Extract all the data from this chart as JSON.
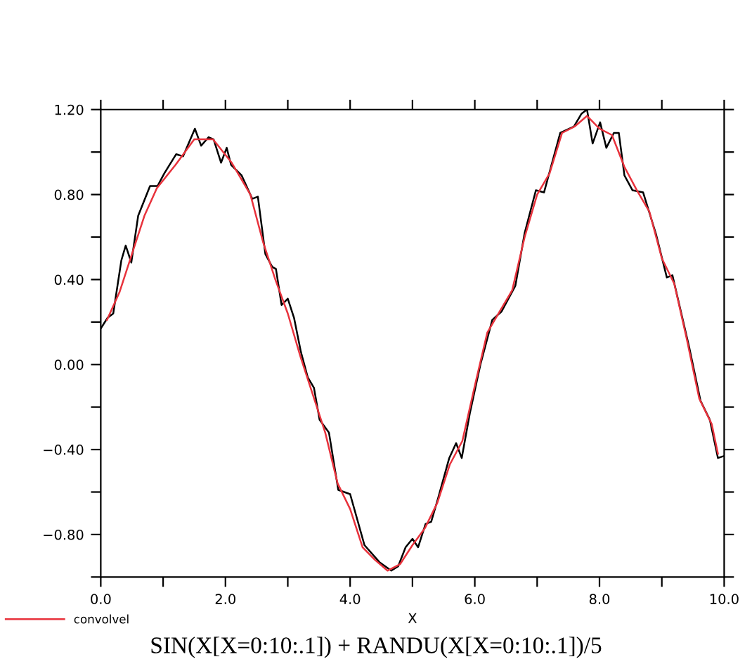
{
  "chart_data": {
    "type": "line",
    "title": "SIN(X[X=0:10:.1]) + RANDU(X[X=0:10:.1])/5",
    "xlabel": "X",
    "xlim": [
      0,
      10
    ],
    "ylim": [
      -1.0,
      1.2
    ],
    "xticks": [
      {
        "value": 0,
        "label": "0.0"
      },
      {
        "value": 1,
        "label": null
      },
      {
        "value": 2,
        "label": "2.0"
      },
      {
        "value": 3,
        "label": null
      },
      {
        "value": 4,
        "label": "4.0"
      },
      {
        "value": 5,
        "label": null
      },
      {
        "value": 6,
        "label": "6.0"
      },
      {
        "value": 7,
        "label": null
      },
      {
        "value": 8,
        "label": "8.0"
      },
      {
        "value": 9,
        "label": null
      },
      {
        "value": 10,
        "label": "10.0"
      }
    ],
    "yticks": [
      {
        "value": -1.0,
        "label": null
      },
      {
        "value": -0.8,
        "label": "−0.80"
      },
      {
        "value": -0.6,
        "label": null
      },
      {
        "value": -0.4,
        "label": "−0.40"
      },
      {
        "value": -0.2,
        "label": null
      },
      {
        "value": 0,
        "label": "0.00"
      },
      {
        "value": 0.2,
        "label": null
      },
      {
        "value": 0.4,
        "label": "0.40"
      },
      {
        "value": 0.6,
        "label": null
      },
      {
        "value": 0.8,
        "label": "0.80"
      },
      {
        "value": 1.0,
        "label": null
      },
      {
        "value": 1.2,
        "label": "1.20"
      }
    ],
    "grid": false,
    "legend": "bottom left",
    "marker": "none",
    "line_style": "solid",
    "series": [
      {
        "color": "#000000",
        "x": [
          0,
          0.11,
          0.2,
          0.33,
          0.4,
          0.49,
          0.6,
          0.79,
          0.91,
          1.02,
          1.21,
          1.32,
          1.51,
          1.61,
          1.73,
          1.81,
          1.93,
          2.02,
          2.09,
          2.26,
          2.43,
          2.52,
          2.64,
          2.75,
          2.81,
          2.9,
          3.0,
          3.1,
          3.21,
          3.32,
          3.42,
          3.51,
          3.66,
          3.81,
          4.0,
          4.23,
          4.41,
          4.47,
          4.66,
          4.77,
          4.89,
          5.0,
          5.09,
          5.21,
          5.3,
          5.41,
          5.59,
          5.7,
          5.79,
          5.92,
          6.09,
          6.28,
          6.43,
          6.65,
          6.8,
          6.98,
          7.11,
          7.37,
          7.59,
          7.71,
          7.8,
          7.89,
          8.01,
          8.11,
          8.23,
          8.31,
          8.4,
          8.53,
          8.7,
          8.91,
          9.08,
          9.17,
          9.44,
          9.62,
          9.77,
          9.9,
          10.0
        ],
        "values": [
          0.17,
          0.22,
          0.24,
          0.49,
          0.56,
          0.48,
          0.7,
          0.84,
          0.84,
          0.9,
          0.99,
          0.98,
          1.11,
          1.03,
          1.07,
          1.06,
          0.95,
          1.02,
          0.94,
          0.89,
          0.78,
          0.79,
          0.52,
          0.46,
          0.45,
          0.28,
          0.31,
          0.22,
          0.06,
          -0.06,
          -0.11,
          -0.26,
          -0.32,
          -0.59,
          -0.61,
          -0.85,
          -0.91,
          -0.93,
          -0.97,
          -0.95,
          -0.86,
          -0.82,
          -0.86,
          -0.75,
          -0.74,
          -0.63,
          -0.44,
          -0.37,
          -0.44,
          -0.23,
          0.0,
          0.21,
          0.25,
          0.37,
          0.62,
          0.82,
          0.81,
          1.09,
          1.12,
          1.18,
          1.2,
          1.04,
          1.14,
          1.02,
          1.09,
          1.09,
          0.89,
          0.82,
          0.81,
          0.61,
          0.41,
          0.42,
          0.08,
          -0.17,
          -0.26,
          -0.44,
          -0.43
        ]
      },
      {
        "name": "convolvel",
        "color": "#e8323c",
        "x": [
          0.1,
          0.3,
          0.5,
          0.7,
          0.9,
          1.2,
          1.5,
          1.8,
          2.1,
          2.4,
          2.6,
          2.8,
          3.0,
          3.2,
          3.4,
          3.6,
          3.8,
          4.0,
          4.2,
          4.4,
          4.6,
          4.8,
          5.0,
          5.2,
          5.4,
          5.6,
          5.8,
          6.0,
          6.2,
          6.4,
          6.6,
          6.8,
          7.0,
          7.2,
          7.4,
          7.6,
          7.8,
          8.0,
          8.2,
          8.4,
          8.6,
          8.8,
          9.0,
          9.2,
          9.4,
          9.6,
          9.8,
          9.9
        ],
        "values": [
          0.21,
          0.34,
          0.52,
          0.7,
          0.83,
          0.94,
          1.06,
          1.06,
          0.95,
          0.8,
          0.58,
          0.4,
          0.24,
          0.04,
          -0.14,
          -0.32,
          -0.56,
          -0.68,
          -0.86,
          -0.92,
          -0.97,
          -0.94,
          -0.85,
          -0.77,
          -0.65,
          -0.47,
          -0.36,
          -0.1,
          0.15,
          0.25,
          0.35,
          0.6,
          0.8,
          0.9,
          1.09,
          1.12,
          1.17,
          1.11,
          1.08,
          0.93,
          0.82,
          0.72,
          0.5,
          0.38,
          0.12,
          -0.16,
          -0.28,
          -0.42
        ]
      }
    ]
  }
}
